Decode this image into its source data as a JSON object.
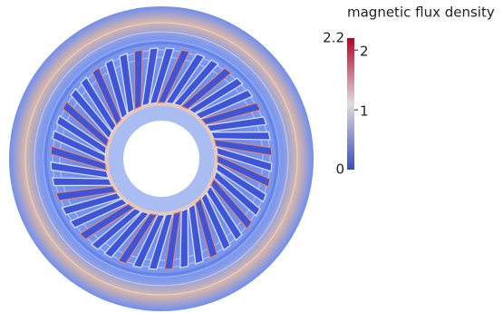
{
  "chart_data": {
    "type": "field",
    "title": "magnetic flux density",
    "clim": [
      0,
      2.2
    ],
    "yticks": [
      1,
      2
    ],
    "colormap": [
      "#3b4cc0",
      "#dddddd",
      "#b40426"
    ]
  }
}
